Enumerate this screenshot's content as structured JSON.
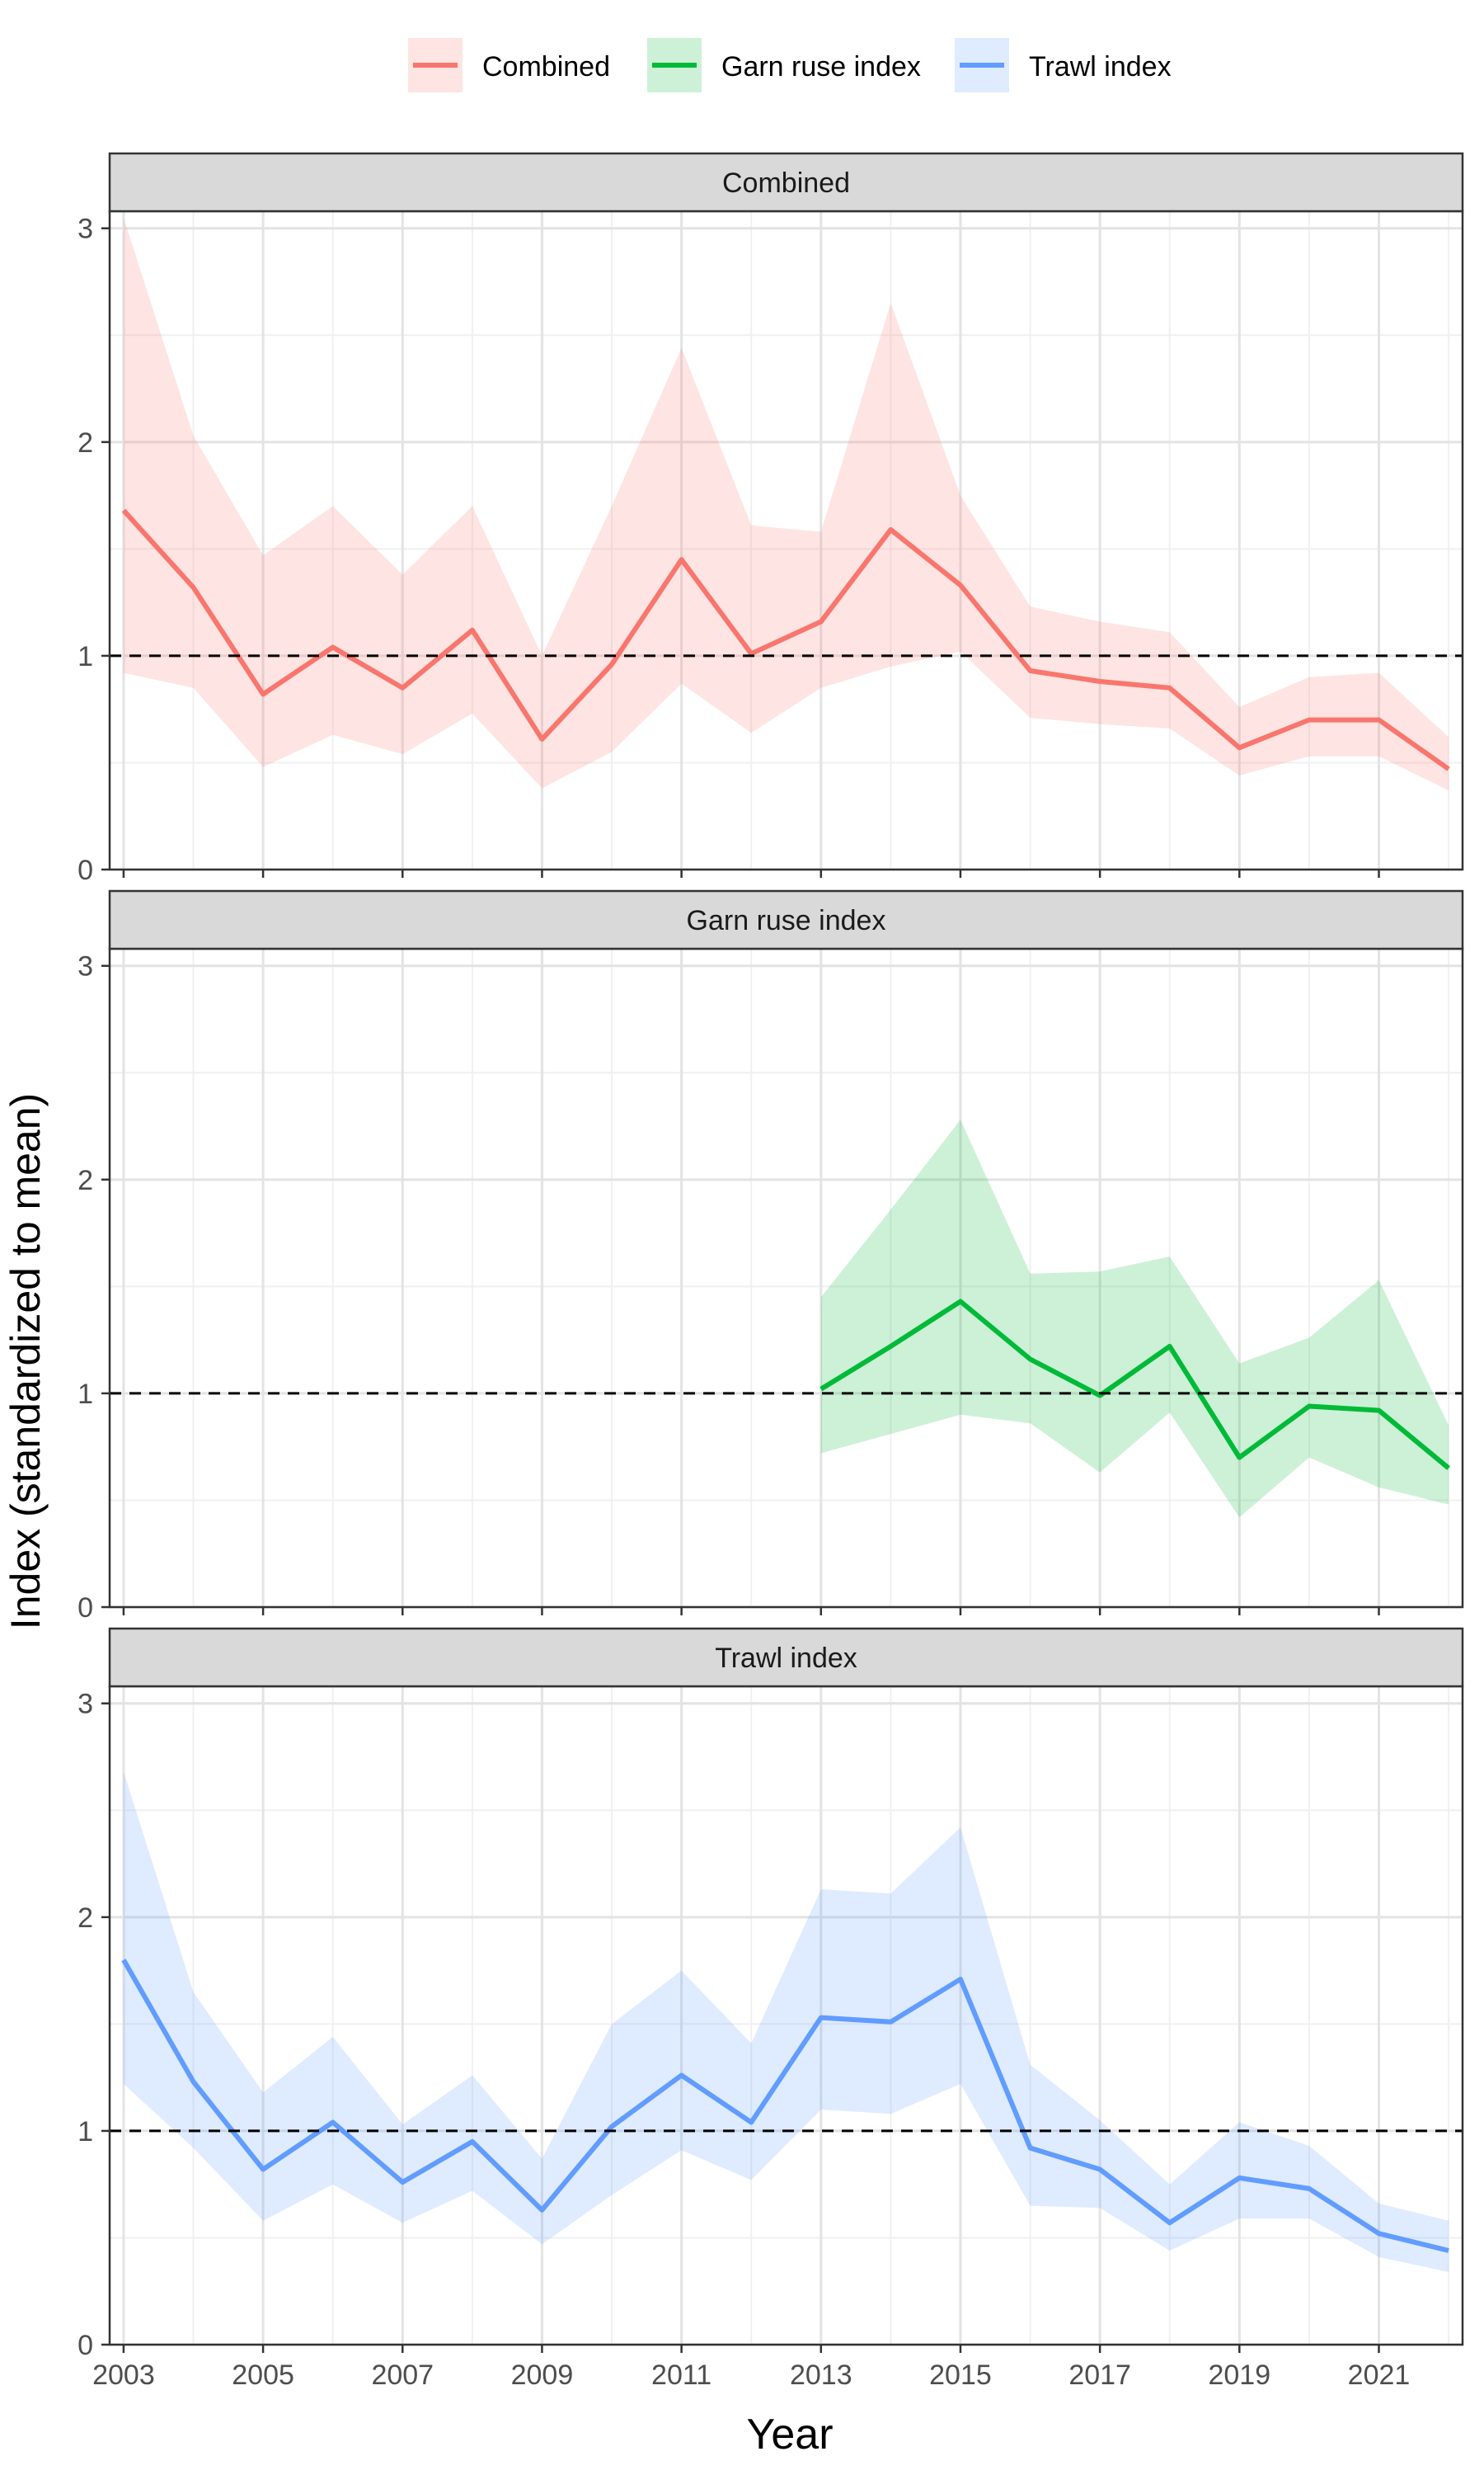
{
  "legend": {
    "items": [
      {
        "label": "Combined",
        "color": "#F8766D"
      },
      {
        "label": "Garn ruse index",
        "color": "#00BA38"
      },
      {
        "label": "Trawl index",
        "color": "#619CFF"
      }
    ],
    "position": "top"
  },
  "axes": {
    "xlabel": "Year",
    "ylabel": "Index (standardized to mean)",
    "x_ticks": [
      "2003",
      "2005",
      "2007",
      "2009",
      "2011",
      "2013",
      "2015",
      "2017",
      "2019",
      "2021"
    ],
    "y_ticks": [
      "0",
      "1",
      "2",
      "3"
    ]
  },
  "chart_data": {
    "type": "line",
    "facets": [
      "Combined",
      "Garn ruse index",
      "Trawl index"
    ],
    "xlim": [
      2003,
      2022
    ],
    "ylim": [
      0,
      3
    ],
    "reference_line": {
      "y": 1,
      "style": "dashed",
      "color": "#000000"
    },
    "grid": true,
    "series": [
      {
        "name": "Combined",
        "facet": "Combined",
        "color": "#F8766D",
        "x": [
          2003,
          2004,
          2005,
          2006,
          2007,
          2008,
          2009,
          2010,
          2011,
          2012,
          2013,
          2014,
          2015,
          2016,
          2017,
          2018,
          2019,
          2020,
          2021,
          2022
        ],
        "y": [
          1.68,
          1.32,
          0.82,
          1.04,
          0.85,
          1.12,
          0.61,
          0.96,
          1.45,
          1.01,
          1.16,
          1.59,
          1.33,
          0.93,
          0.88,
          0.85,
          0.57,
          0.7,
          0.7,
          0.47
        ],
        "lower": [
          0.92,
          0.85,
          0.48,
          0.63,
          0.54,
          0.73,
          0.38,
          0.55,
          0.87,
          0.64,
          0.85,
          0.95,
          1.02,
          0.71,
          0.68,
          0.66,
          0.44,
          0.53,
          0.53,
          0.37
        ],
        "upper": [
          3.05,
          2.03,
          1.47,
          1.7,
          1.38,
          1.7,
          1.0,
          1.7,
          2.44,
          1.61,
          1.58,
          2.65,
          1.75,
          1.23,
          1.16,
          1.11,
          0.76,
          0.9,
          0.92,
          0.62
        ]
      },
      {
        "name": "Garn ruse index",
        "facet": "Garn ruse index",
        "color": "#00BA38",
        "x": [
          2013,
          2014,
          2015,
          2016,
          2017,
          2018,
          2019,
          2020,
          2021,
          2022
        ],
        "y": [
          1.02,
          1.22,
          1.43,
          1.16,
          0.99,
          1.22,
          0.7,
          0.94,
          0.92,
          0.65
        ],
        "lower": [
          0.72,
          0.81,
          0.9,
          0.86,
          0.63,
          0.91,
          0.42,
          0.7,
          0.56,
          0.48
        ],
        "upper": [
          1.45,
          1.86,
          2.28,
          1.56,
          1.57,
          1.64,
          1.14,
          1.26,
          1.53,
          0.85
        ]
      },
      {
        "name": "Trawl index",
        "facet": "Trawl index",
        "color": "#619CFF",
        "x": [
          2003,
          2004,
          2005,
          2006,
          2007,
          2008,
          2009,
          2010,
          2011,
          2012,
          2013,
          2014,
          2015,
          2016,
          2017,
          2018,
          2019,
          2020,
          2021,
          2022
        ],
        "y": [
          1.8,
          1.23,
          0.82,
          1.04,
          0.76,
          0.95,
          0.63,
          1.02,
          1.26,
          1.04,
          1.53,
          1.51,
          1.71,
          0.92,
          0.82,
          0.57,
          0.78,
          0.73,
          0.52,
          0.44
        ],
        "lower": [
          1.22,
          0.92,
          0.58,
          0.75,
          0.57,
          0.72,
          0.47,
          0.7,
          0.91,
          0.77,
          1.1,
          1.08,
          1.22,
          0.65,
          0.64,
          0.44,
          0.59,
          0.59,
          0.41,
          0.34
        ],
        "upper": [
          2.68,
          1.65,
          1.18,
          1.44,
          1.03,
          1.26,
          0.87,
          1.5,
          1.75,
          1.41,
          2.13,
          2.11,
          2.42,
          1.31,
          1.05,
          0.75,
          1.04,
          0.93,
          0.66,
          0.58
        ]
      }
    ]
  }
}
